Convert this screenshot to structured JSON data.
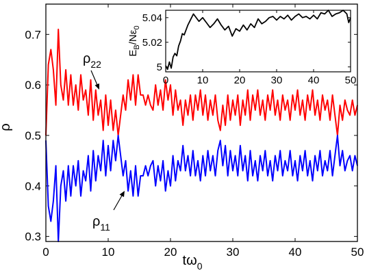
{
  "chart_data": [
    {
      "type": "line",
      "xlabel": "tω",
      "xlabel_sub": "0",
      "ylabel": "ρ",
      "xlim": [
        0,
        50
      ],
      "ylim": [
        0.29,
        0.76
      ],
      "x_ticks": [
        0,
        10,
        20,
        30,
        40,
        50
      ],
      "y_ticks": [
        0.3,
        0.4,
        0.5,
        0.6,
        0.7
      ],
      "x_tick_labels": [
        "0",
        "10",
        "20",
        "30",
        "40",
        "50"
      ],
      "y_tick_labels": [
        "0.3",
        "0.4",
        "0.5",
        "0.6",
        "0.7"
      ],
      "grid": false,
      "annotations": [
        {
          "text": "ρ",
          "sub": "22",
          "series": "rho22",
          "points_to": [
            8.1,
            0.594
          ]
        },
        {
          "text": "ρ",
          "sub": "11",
          "series": "rho11",
          "points_to": [
            11.5,
            0.393
          ]
        }
      ],
      "series": [
        {
          "key": "rho22",
          "color": "#ff0000",
          "x": [
            0,
            0.4,
            0.8,
            1.2,
            1.6,
            2.0,
            2.4,
            2.8,
            3.2,
            3.6,
            4.0,
            4.4,
            4.8,
            5.2,
            5.6,
            6.0,
            6.4,
            6.8,
            7.2,
            7.6,
            8.0,
            8.4,
            8.8,
            9.2,
            9.6,
            10.0,
            10.4,
            10.8,
            11.2,
            11.6,
            12.0,
            12.4,
            12.8,
            13.2,
            13.6,
            14.0,
            14.4,
            14.8,
            15.2,
            15.6,
            16.0,
            16.4,
            16.8,
            17.2,
            17.6,
            18.0,
            18.4,
            18.8,
            19.2,
            19.6,
            20.0,
            20.4,
            20.8,
            21.2,
            21.6,
            22.0,
            22.4,
            22.8,
            23.2,
            23.6,
            24.0,
            24.4,
            24.8,
            25.2,
            25.6,
            26.0,
            26.4,
            26.8,
            27.2,
            27.6,
            28.0,
            28.4,
            28.8,
            29.2,
            29.6,
            30.0,
            30.4,
            30.8,
            31.2,
            31.6,
            32.0,
            32.4,
            32.8,
            33.2,
            33.6,
            34.0,
            34.4,
            34.8,
            35.2,
            35.6,
            36.0,
            36.4,
            36.8,
            37.2,
            37.6,
            38.0,
            38.4,
            38.8,
            39.2,
            39.6,
            40.0,
            40.4,
            40.8,
            41.2,
            41.6,
            42.0,
            42.4,
            42.8,
            43.2,
            43.6,
            44.0,
            44.4,
            44.8,
            45.2,
            45.6,
            46.0,
            46.4,
            46.8,
            47.2,
            47.6,
            48.0,
            48.4,
            48.8,
            49.2,
            49.6,
            50.0
          ],
          "y": [
            0.5,
            0.64,
            0.67,
            0.63,
            0.56,
            0.71,
            0.6,
            0.57,
            0.63,
            0.56,
            0.62,
            0.56,
            0.6,
            0.55,
            0.62,
            0.57,
            0.59,
            0.54,
            0.61,
            0.53,
            0.59,
            0.54,
            0.57,
            0.51,
            0.58,
            0.52,
            0.57,
            0.51,
            0.55,
            0.5,
            0.54,
            0.58,
            0.55,
            0.61,
            0.57,
            0.62,
            0.56,
            0.62,
            0.58,
            0.58,
            0.56,
            0.58,
            0.56,
            0.55,
            0.6,
            0.56,
            0.59,
            0.55,
            0.61,
            0.57,
            0.6,
            0.54,
            0.59,
            0.55,
            0.57,
            0.52,
            0.57,
            0.54,
            0.58,
            0.53,
            0.58,
            0.55,
            0.59,
            0.54,
            0.58,
            0.53,
            0.57,
            0.54,
            0.58,
            0.53,
            0.51,
            0.56,
            0.52,
            0.58,
            0.53,
            0.57,
            0.54,
            0.58,
            0.52,
            0.57,
            0.54,
            0.59,
            0.53,
            0.58,
            0.55,
            0.59,
            0.54,
            0.57,
            0.53,
            0.58,
            0.55,
            0.59,
            0.54,
            0.57,
            0.53,
            0.58,
            0.55,
            0.57,
            0.53,
            0.58,
            0.55,
            0.59,
            0.54,
            0.57,
            0.53,
            0.58,
            0.55,
            0.59,
            0.54,
            0.57,
            0.53,
            0.58,
            0.55,
            0.57,
            0.53,
            0.58,
            0.54,
            0.5,
            0.56,
            0.53,
            0.57,
            0.55,
            0.54,
            0.57,
            0.54,
            0.56
          ]
        },
        {
          "key": "rho11",
          "color": "#0000ff",
          "x": [
            0,
            0.4,
            0.8,
            1.2,
            1.6,
            2.0,
            2.4,
            2.8,
            3.2,
            3.6,
            4.0,
            4.4,
            4.8,
            5.2,
            5.6,
            6.0,
            6.4,
            6.8,
            7.2,
            7.6,
            8.0,
            8.4,
            8.8,
            9.2,
            9.6,
            10.0,
            10.4,
            10.8,
            11.2,
            11.6,
            12.0,
            12.4,
            12.8,
            13.2,
            13.6,
            14.0,
            14.4,
            14.8,
            15.2,
            15.6,
            16.0,
            16.4,
            16.8,
            17.2,
            17.6,
            18.0,
            18.4,
            18.8,
            19.2,
            19.6,
            20.0,
            20.4,
            20.8,
            21.2,
            21.6,
            22.0,
            22.4,
            22.8,
            23.2,
            23.6,
            24.0,
            24.4,
            24.8,
            25.2,
            25.6,
            26.0,
            26.4,
            26.8,
            27.2,
            27.6,
            28.0,
            28.4,
            28.8,
            29.2,
            29.6,
            30.0,
            30.4,
            30.8,
            31.2,
            31.6,
            32.0,
            32.4,
            32.8,
            33.2,
            33.6,
            34.0,
            34.4,
            34.8,
            35.2,
            35.6,
            36.0,
            36.4,
            36.8,
            37.2,
            37.6,
            38.0,
            38.4,
            38.8,
            39.2,
            39.6,
            40.0,
            40.4,
            40.8,
            41.2,
            41.6,
            42.0,
            42.4,
            42.8,
            43.2,
            43.6,
            44.0,
            44.4,
            44.8,
            45.2,
            45.6,
            46.0,
            46.4,
            46.8,
            47.2,
            47.6,
            48.0,
            48.4,
            48.8,
            49.2,
            49.6,
            50.0
          ],
          "y": [
            0.49,
            0.36,
            0.33,
            0.37,
            0.44,
            0.29,
            0.4,
            0.43,
            0.37,
            0.44,
            0.38,
            0.44,
            0.4,
            0.45,
            0.38,
            0.43,
            0.41,
            0.46,
            0.39,
            0.47,
            0.41,
            0.46,
            0.43,
            0.49,
            0.42,
            0.48,
            0.43,
            0.49,
            0.45,
            0.5,
            0.46,
            0.42,
            0.45,
            0.39,
            0.43,
            0.38,
            0.44,
            0.38,
            0.42,
            0.42,
            0.44,
            0.42,
            0.44,
            0.45,
            0.4,
            0.44,
            0.41,
            0.45,
            0.39,
            0.43,
            0.4,
            0.46,
            0.41,
            0.45,
            0.43,
            0.48,
            0.43,
            0.46,
            0.42,
            0.47,
            0.42,
            0.45,
            0.41,
            0.46,
            0.42,
            0.47,
            0.43,
            0.46,
            0.42,
            0.47,
            0.49,
            0.44,
            0.48,
            0.42,
            0.47,
            0.43,
            0.46,
            0.42,
            0.48,
            0.43,
            0.46,
            0.41,
            0.47,
            0.42,
            0.45,
            0.41,
            0.46,
            0.43,
            0.47,
            0.42,
            0.45,
            0.41,
            0.46,
            0.43,
            0.47,
            0.42,
            0.45,
            0.43,
            0.47,
            0.42,
            0.45,
            0.41,
            0.46,
            0.43,
            0.47,
            0.42,
            0.45,
            0.41,
            0.46,
            0.43,
            0.47,
            0.42,
            0.45,
            0.43,
            0.47,
            0.42,
            0.46,
            0.5,
            0.44,
            0.47,
            0.43,
            0.45,
            0.46,
            0.43,
            0.46,
            0.44
          ]
        }
      ]
    },
    {
      "type": "line",
      "inset": true,
      "ylabel": "E",
      "ylabel_parts": [
        "E",
        "B",
        "/Nε",
        "0"
      ],
      "xlim": [
        0,
        50
      ],
      "ylim": [
        4.996,
        5.046
      ],
      "x_ticks": [
        0,
        10,
        20,
        30,
        40,
        50
      ],
      "y_ticks": [
        5.0,
        5.02,
        5.04
      ],
      "x_tick_labels": [
        "0",
        "10",
        "20",
        "30",
        "40",
        "50"
      ],
      "y_tick_labels": [
        "5",
        "5.02",
        "5.04"
      ],
      "grid": false,
      "series": [
        {
          "key": "eb",
          "color": "#000000",
          "x": [
            0,
            0.5,
            1.0,
            1.5,
            2.0,
            2.5,
            3.0,
            3.5,
            4.0,
            4.5,
            5.0,
            5.5,
            6.0,
            6.5,
            7.0,
            7.5,
            8.0,
            9.0,
            10.0,
            11.0,
            12.0,
            13.0,
            14.0,
            15.0,
            16.0,
            17.0,
            18.0,
            19.0,
            20.0,
            21.0,
            22.0,
            23.0,
            24.0,
            25.0,
            26.0,
            27.0,
            28.0,
            29.0,
            30.0,
            31.0,
            32.0,
            33.0,
            34.0,
            35.0,
            36.0,
            37.0,
            38.0,
            39.0,
            40.0,
            41.0,
            42.0,
            43.0,
            44.0,
            45.0,
            46.0,
            47.0,
            48.0,
            49.0,
            49.5,
            50.0
          ],
          "y": [
            5.001,
            4.998,
            5.004,
            4.999,
            5.008,
            5.011,
            5.009,
            5.017,
            5.021,
            5.027,
            5.026,
            5.03,
            5.034,
            5.037,
            5.04,
            5.043,
            5.041,
            5.037,
            5.04,
            5.036,
            5.032,
            5.035,
            5.039,
            5.034,
            5.03,
            5.033,
            5.025,
            5.031,
            5.029,
            5.034,
            5.03,
            5.035,
            5.032,
            5.039,
            5.035,
            5.037,
            5.04,
            5.041,
            5.038,
            5.041,
            5.039,
            5.042,
            5.038,
            5.041,
            5.043,
            5.04,
            5.041,
            5.039,
            5.042,
            5.039,
            5.044,
            5.043,
            5.046,
            5.041,
            5.043,
            5.044,
            5.046,
            5.043,
            5.036,
            5.04
          ]
        }
      ]
    }
  ]
}
